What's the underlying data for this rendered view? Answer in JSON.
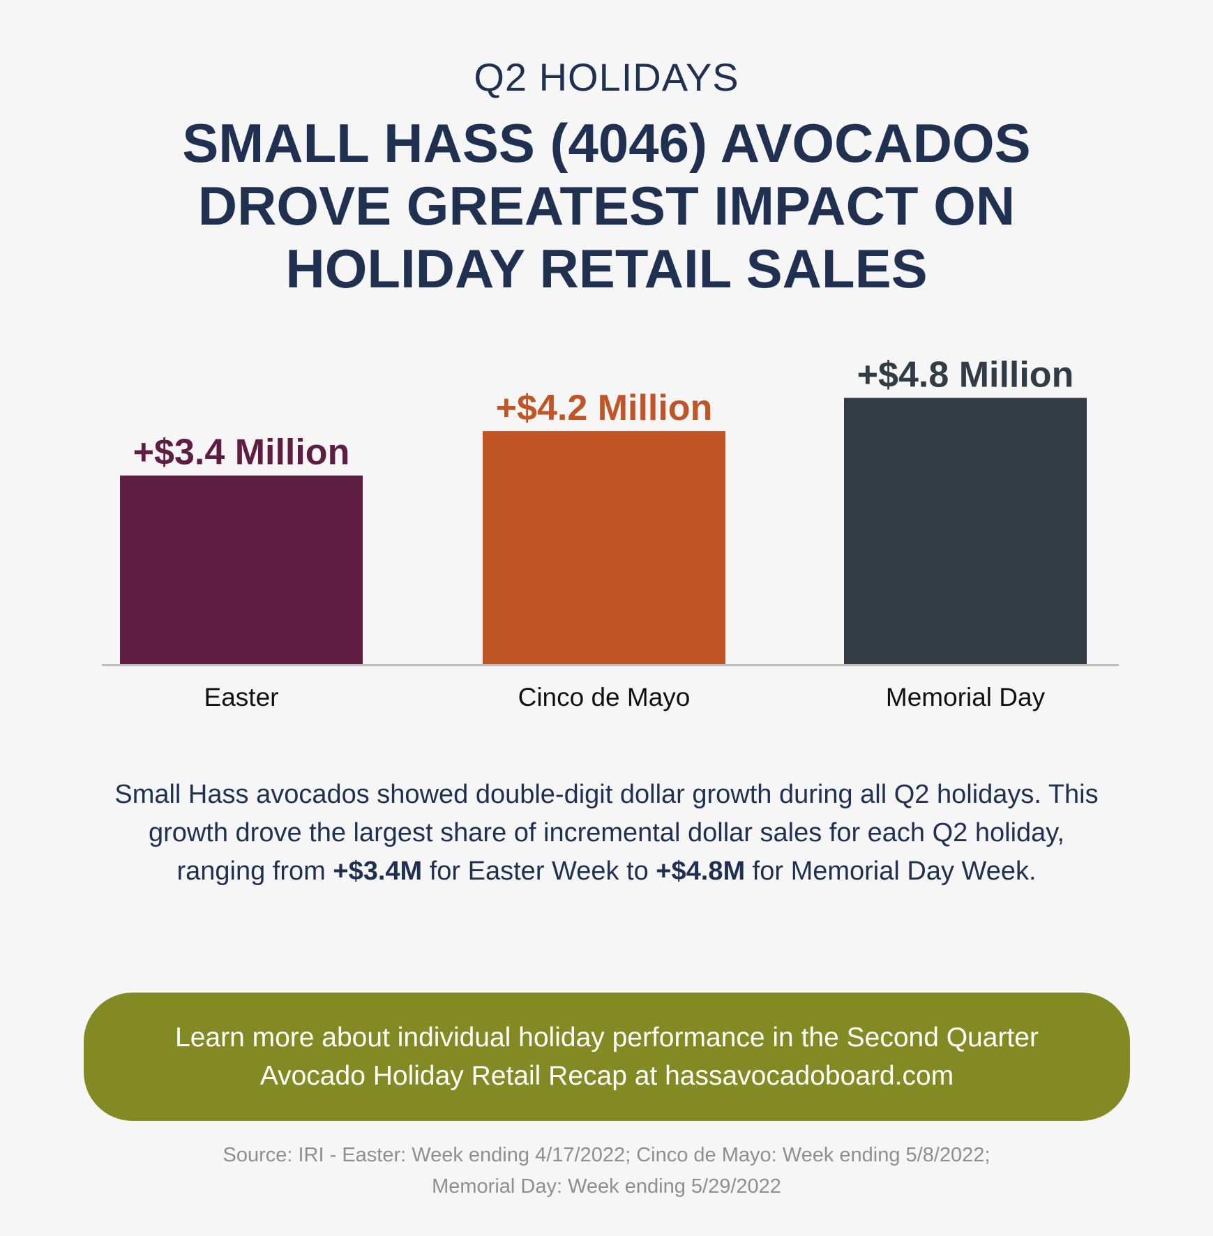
{
  "header": {
    "kicker": "Q2 HOLIDAYS",
    "headline": "SMALL HASS (4046) AVOCADOS DROVE GREATEST IMPACT ON HOLIDAY RETAIL SALES"
  },
  "chart_data": {
    "type": "bar",
    "categories": [
      "Easter",
      "Cinco de Mayo",
      "Memorial Day"
    ],
    "values": [
      3.4,
      4.2,
      4.8
    ],
    "data_labels": [
      "+$3.4 Million",
      "+$4.2 Million",
      "+$4.8 Million"
    ],
    "colors": [
      "#5e1e42",
      "#c05528",
      "#323c45"
    ],
    "title": "",
    "xlabel": "",
    "ylabel": "",
    "grid": false,
    "legend": "none"
  },
  "description": {
    "part1": "Small Hass avocados showed double-digit dollar growth during all Q2 holidays. This growth drove the largest share of incremental dollar sales for each Q2 holiday, ranging from ",
    "bold1": "+$3.4M",
    "part2": " for Easter Week to ",
    "bold2": "+$4.8M",
    "part3": " for Memorial Day Week."
  },
  "cta": {
    "text": "Learn more about individual holiday performance in the Second Quarter Avocado Holiday Retail Recap at hassavocadoboard.com",
    "color": "#838a23"
  },
  "source": {
    "line1": "Source: IRI - Easter: Week ending 4/17/2022; Cinco de Mayo: Week ending 5/8/2022;",
    "line2": "Memorial Day: Week ending 5/29/2022"
  }
}
